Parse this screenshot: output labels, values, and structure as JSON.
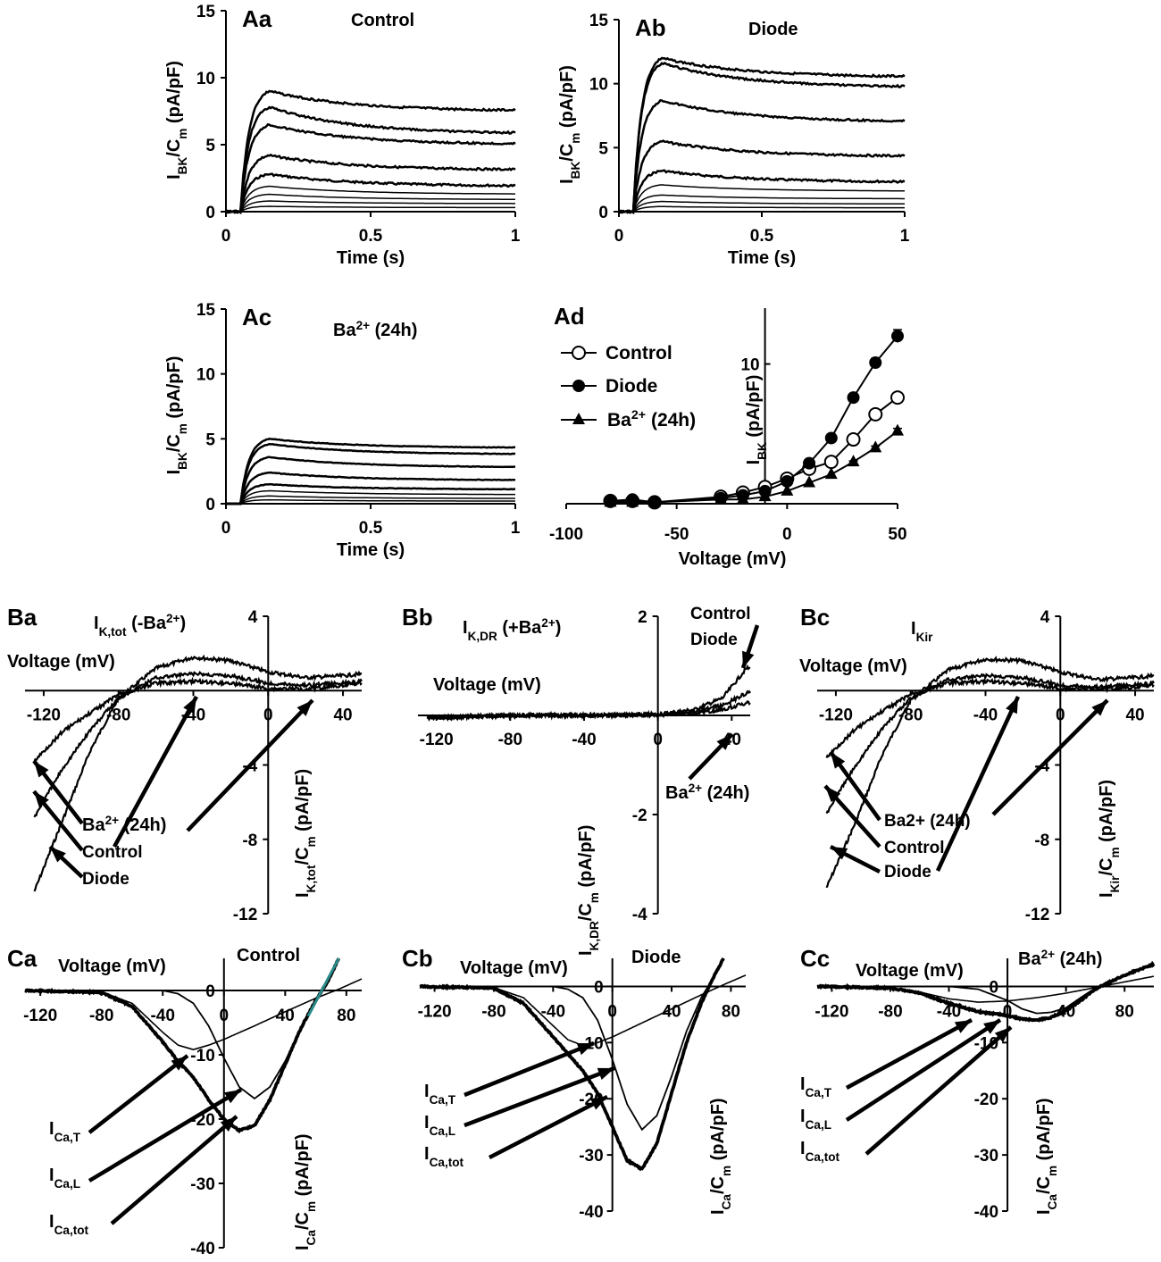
{
  "chart_data": [
    {
      "id": "Aa",
      "type": "line",
      "panel_label": "Aa",
      "title": "Control",
      "xlabel": "Time (s)",
      "ylabel": "I_BK/C_m (pA/pF)",
      "xlim": [
        0,
        1
      ],
      "ylim": [
        0,
        15
      ],
      "xticks": [
        "0",
        "0.5",
        "1"
      ],
      "yticks": [
        "0",
        "5",
        "10",
        "15"
      ],
      "series": [
        {
          "values_steady": [
            7.5,
            5.8,
            5.0,
            3.1,
            1.9,
            1.3,
            0.9,
            0.6,
            0.3
          ]
        },
        {
          "values_peak": [
            9.0,
            7.8,
            6.5,
            4.2,
            2.8,
            1.9,
            1.3,
            0.8,
            0.4
          ]
        }
      ]
    },
    {
      "id": "Ab",
      "type": "line",
      "panel_label": "Ab",
      "title": "Diode",
      "xlabel": "Time (s)",
      "ylabel": "I_BK/C_m (pA/pF)",
      "xlim": [
        0,
        1
      ],
      "ylim": [
        0,
        15
      ],
      "xticks": [
        "0",
        "0.5",
        "1"
      ],
      "yticks": [
        "0",
        "5",
        "10",
        "15"
      ],
      "series": [
        {
          "values_steady": [
            10.5,
            9.7,
            7.0,
            4.3,
            2.3,
            1.6,
            1.0,
            0.6,
            0.3
          ]
        },
        {
          "values_peak": [
            12.0,
            11.6,
            8.7,
            5.5,
            3.2,
            2.1,
            1.3,
            0.8,
            0.4
          ]
        }
      ]
    },
    {
      "id": "Ac",
      "type": "line",
      "panel_label": "Ac",
      "title": "Ba²⁺ (24h)",
      "xlabel": "Time (s)",
      "ylabel": "I_BK/C_m (pA/pF)",
      "xlim": [
        0,
        1
      ],
      "ylim": [
        0,
        15
      ],
      "xticks": [
        "0",
        "0.5",
        "1"
      ],
      "yticks": [
        "0",
        "5",
        "10",
        "15"
      ],
      "series": [
        {
          "values_steady": [
            4.3,
            3.8,
            2.8,
            1.8,
            1.1,
            0.7,
            0.4,
            0.2
          ]
        },
        {
          "values_peak": [
            5.0,
            4.6,
            3.6,
            2.4,
            1.5,
            1.0,
            0.6,
            0.3
          ]
        }
      ]
    },
    {
      "id": "Ad",
      "type": "line",
      "panel_label": "Ad",
      "xlabel": "Voltage (mV)",
      "ylabel": "I_BK (pA/pF)",
      "xlim": [
        -100,
        50
      ],
      "ylim": [
        0,
        14
      ],
      "xticks": [
        "-100",
        "-50",
        "0",
        "50"
      ],
      "yticks": [
        "10"
      ],
      "x": [
        -80,
        -70,
        -60,
        -30,
        -20,
        -10,
        0,
        10,
        20,
        30,
        40,
        50
      ],
      "series": [
        {
          "name": "Control",
          "marker": "open-circle",
          "values": [
            0.2,
            0.2,
            0.1,
            0.5,
            0.8,
            1.2,
            1.8,
            2.5,
            3.0,
            4.6,
            6.4,
            7.6
          ]
        },
        {
          "name": "Diode",
          "marker": "filled-circle",
          "values": [
            0.2,
            0.3,
            0.1,
            0.4,
            0.6,
            0.9,
            1.6,
            2.9,
            4.7,
            7.6,
            10.1,
            12.0
          ]
        },
        {
          "name": "Ba²⁺ (24h)",
          "marker": "filled-triangle",
          "values": [
            0.1,
            0.1,
            0.1,
            0.3,
            0.3,
            0.5,
            0.9,
            1.5,
            2.1,
            3.0,
            4.0,
            5.2
          ]
        }
      ]
    },
    {
      "id": "Ba",
      "type": "line",
      "panel_label": "Ba",
      "title": "I_K,tot (-Ba²⁺)",
      "xlabel": "Voltage (mV)",
      "ylabel": "I_K,tot/C_m (pA/pF)",
      "xlim": [
        -130,
        50
      ],
      "ylim": [
        -12,
        4
      ],
      "xticks": [
        "-120",
        "-80",
        "-40",
        "0",
        "40"
      ],
      "yticks": [
        "4",
        "-4",
        "-8",
        "-12"
      ],
      "series": [
        {
          "name": "Diode",
          "x": [
            -125,
            -110,
            -95,
            -80,
            -60,
            -40,
            -20,
            0,
            20,
            40,
            50
          ],
          "values": [
            -10.8,
            -7.0,
            -3.2,
            -0.4,
            1.2,
            1.8,
            1.6,
            1.0,
            0.7,
            0.8,
            0.9
          ]
        },
        {
          "name": "Control",
          "x": [
            -125,
            -110,
            -95,
            -80,
            -60,
            -40,
            -20,
            0,
            20,
            40,
            50
          ],
          "values": [
            -6.8,
            -4.2,
            -2.1,
            -0.4,
            0.7,
            0.9,
            0.8,
            0.4,
            0.3,
            0.4,
            0.5
          ]
        },
        {
          "name": "Ba²⁺ (24h)",
          "x": [
            -125,
            -110,
            -95,
            -80,
            -60,
            -40,
            -20,
            0,
            20,
            40,
            50
          ],
          "values": [
            -3.8,
            -2.2,
            -1.2,
            -0.2,
            0.4,
            0.5,
            0.4,
            0.1,
            0.1,
            0.3,
            0.4
          ]
        }
      ],
      "annotations": [
        "Ba²⁺ (24h)",
        "Control",
        "Diode"
      ]
    },
    {
      "id": "Bb",
      "type": "line",
      "panel_label": "Bb",
      "title": "I_K,DR (+Ba²⁺)",
      "xlabel": "Voltage (mV)",
      "ylabel": "I_K,DR/C_m (pA/pF)",
      "xlim": [
        -130,
        50
      ],
      "ylim": [
        -4,
        2
      ],
      "xticks": [
        "-120",
        "-80",
        "-40",
        "0",
        "40"
      ],
      "yticks": [
        "2",
        "-2",
        "-4"
      ],
      "series": [
        {
          "name": "Control",
          "x": [
            -125,
            -80,
            -40,
            0,
            20,
            35,
            48
          ],
          "values": [
            -0.05,
            0.0,
            0.0,
            0.02,
            0.12,
            0.35,
            0.95
          ]
        },
        {
          "name": "Diode",
          "x": [
            -125,
            -80,
            -40,
            0,
            20,
            35,
            48
          ],
          "values": [
            -0.05,
            0.0,
            0.0,
            0.02,
            0.08,
            0.2,
            0.45
          ]
        },
        {
          "name": "Ba²⁺ (24h)",
          "x": [
            -125,
            -80,
            -40,
            0,
            20,
            35,
            48
          ],
          "values": [
            -0.05,
            0.0,
            0.0,
            0.01,
            0.05,
            0.12,
            0.25
          ]
        }
      ],
      "annotations": [
        "Control",
        "Diode",
        "Ba²⁺ (24h)"
      ]
    },
    {
      "id": "Bc",
      "type": "line",
      "panel_label": "Bc",
      "title": "I_Kir",
      "xlabel": "Voltage (mV)",
      "ylabel": "I_Kir/C_m (pA/pF)",
      "xlim": [
        -130,
        50
      ],
      "ylim": [
        -12,
        4
      ],
      "xticks": [
        "-120",
        "-80",
        "-40",
        "0",
        "40"
      ],
      "yticks": [
        "4",
        "-4",
        "-8",
        "-12"
      ],
      "series": [
        {
          "name": "Diode",
          "x": [
            -125,
            -110,
            -95,
            -80,
            -60,
            -40,
            -20,
            0,
            20,
            40,
            50
          ],
          "values": [
            -10.6,
            -7.2,
            -3.4,
            -0.5,
            1.1,
            1.7,
            1.6,
            1.0,
            0.6,
            0.7,
            0.8
          ]
        },
        {
          "name": "Control",
          "x": [
            -125,
            -110,
            -95,
            -80,
            -60,
            -40,
            -20,
            0,
            20,
            40,
            50
          ],
          "values": [
            -6.6,
            -4.1,
            -2.0,
            -0.4,
            0.6,
            0.8,
            0.7,
            0.3,
            0.2,
            0.3,
            0.4
          ]
        },
        {
          "name": "Ba2+ (24h)",
          "x": [
            -125,
            -110,
            -95,
            -80,
            -60,
            -40,
            -20,
            0,
            20,
            40,
            50
          ],
          "values": [
            -3.6,
            -2.1,
            -1.1,
            -0.2,
            0.4,
            0.5,
            0.4,
            0.1,
            0.1,
            0.2,
            0.3
          ]
        }
      ],
      "annotations": [
        "Ba2+ (24h)",
        "Control",
        "Diode"
      ]
    },
    {
      "id": "Ca",
      "type": "line",
      "panel_label": "Ca",
      "title": "Control",
      "xlabel": "Voltage (mV)",
      "ylabel": "I_Ca/C_m (pA/pF)",
      "xlim": [
        -130,
        90
      ],
      "ylim": [
        -40,
        5
      ],
      "xticks": [
        "-120",
        "-80",
        "-40",
        "0",
        "40",
        "80"
      ],
      "yticks": [
        "0",
        "-10",
        "-20",
        "-30",
        "-40"
      ],
      "series": [
        {
          "name": "I_Ca,T",
          "x": [
            -130,
            -80,
            -60,
            -40,
            -30,
            -20,
            -10,
            0,
            20,
            40,
            60,
            75,
            90
          ],
          "values": [
            0,
            -0.2,
            -2,
            -6.5,
            -8.5,
            -9.2,
            -8.5,
            -7.6,
            -5.5,
            -3.3,
            -1.2,
            0.2,
            1.8
          ]
        },
        {
          "name": "I_Ca,L",
          "x": [
            -130,
            -40,
            -30,
            -20,
            -10,
            0,
            10,
            20,
            30,
            40,
            50,
            60,
            68,
            75
          ],
          "values": [
            0,
            0,
            -0.5,
            -2,
            -5.5,
            -10.5,
            -15,
            -16.8,
            -15,
            -11,
            -6,
            -1.5,
            1.5,
            5
          ]
        },
        {
          "name": "I_Ca,tot",
          "x": [
            -130,
            -80,
            -60,
            -40,
            -30,
            -20,
            -10,
            0,
            10,
            20,
            30,
            40,
            50,
            60,
            68,
            75
          ],
          "values": [
            0,
            -0.3,
            -2.5,
            -8,
            -11,
            -13.5,
            -17,
            -20,
            -21.8,
            -21,
            -17,
            -11.5,
            -6,
            -1.5,
            1.5,
            5
          ]
        }
      ],
      "annotations": [
        "I_Ca,T",
        "I_Ca,L",
        "I_Ca,tot"
      ]
    },
    {
      "id": "Cb",
      "type": "line",
      "panel_label": "Cb",
      "title": "Diode",
      "xlabel": "Voltage (mV)",
      "ylabel": "I_Ca/C_m (pA/pF)",
      "xlim": [
        -130,
        90
      ],
      "ylim": [
        -40,
        5
      ],
      "xticks": [
        "-120",
        "-80",
        "-40",
        "0",
        "40",
        "80"
      ],
      "yticks": [
        "0",
        "-10",
        "-20",
        "-30",
        "-40"
      ],
      "series": [
        {
          "name": "I_Ca,T",
          "x": [
            -130,
            -80,
            -60,
            -40,
            -30,
            -20,
            -10,
            0,
            20,
            40,
            60,
            75,
            90
          ],
          "values": [
            0,
            -0.2,
            -2,
            -7,
            -9.5,
            -10.5,
            -10,
            -9,
            -6.5,
            -4,
            -1.5,
            0.3,
            2
          ]
        },
        {
          "name": "I_Ca,L",
          "x": [
            -130,
            -40,
            -30,
            -20,
            -10,
            0,
            10,
            20,
            30,
            40,
            50,
            60,
            68,
            75
          ],
          "values": [
            0,
            0,
            -0.5,
            -2,
            -6,
            -13,
            -21,
            -25.5,
            -23,
            -16,
            -8,
            -2,
            1.5,
            5
          ]
        },
        {
          "name": "I_Ca,tot",
          "x": [
            -130,
            -80,
            -60,
            -40,
            -30,
            -20,
            -10,
            0,
            10,
            20,
            30,
            40,
            50,
            60,
            68,
            75
          ],
          "values": [
            0,
            -0.3,
            -3,
            -9,
            -12,
            -15,
            -19,
            -25,
            -31,
            -32.5,
            -28,
            -19,
            -10,
            -3,
            1.5,
            5
          ]
        }
      ],
      "annotations": [
        "I_Ca,T",
        "I_Ca,L",
        "I_Ca,tot"
      ]
    },
    {
      "id": "Cc",
      "type": "line",
      "panel_label": "Cc",
      "title": "Ba²⁺ (24h)",
      "xlabel": "Voltage (mV)",
      "ylabel": "I_Ca/C_m (pA/pF)",
      "xlim": [
        -130,
        100
      ],
      "ylim": [
        -40,
        5
      ],
      "xticks": [
        "-120",
        "-80",
        "-40",
        "0",
        "40",
        "80"
      ],
      "yticks": [
        "0",
        "-10",
        "-20",
        "-30",
        "-40"
      ],
      "series": [
        {
          "name": "I_Ca,T",
          "x": [
            -130,
            -80,
            -60,
            -40,
            -20,
            0,
            20,
            40,
            60,
            80,
            100
          ],
          "values": [
            0,
            -0.2,
            -1,
            -2.2,
            -2.8,
            -2.6,
            -2,
            -1.2,
            -0.2,
            0.8,
            1.8
          ]
        },
        {
          "name": "I_Ca,L",
          "x": [
            -130,
            -40,
            -20,
            0,
            10,
            20,
            30,
            40,
            50,
            60,
            70,
            80,
            100
          ],
          "values": [
            0,
            0,
            -0.5,
            -2.5,
            -4,
            -4.8,
            -4.6,
            -3.8,
            -2,
            -0.3,
            0.8,
            2,
            4
          ]
        },
        {
          "name": "I_Ca,tot",
          "x": [
            -130,
            -80,
            -60,
            -40,
            -20,
            0,
            10,
            20,
            30,
            40,
            50,
            60,
            70,
            80,
            100
          ],
          "values": [
            0,
            -0.3,
            -1.2,
            -3,
            -4.5,
            -5.2,
            -5.8,
            -6,
            -5.5,
            -4.3,
            -2.5,
            -0.5,
            0.8,
            2,
            4
          ]
        }
      ],
      "annotations": [
        "I_Ca,T",
        "I_Ca,L",
        "I_Ca,tot"
      ]
    }
  ]
}
